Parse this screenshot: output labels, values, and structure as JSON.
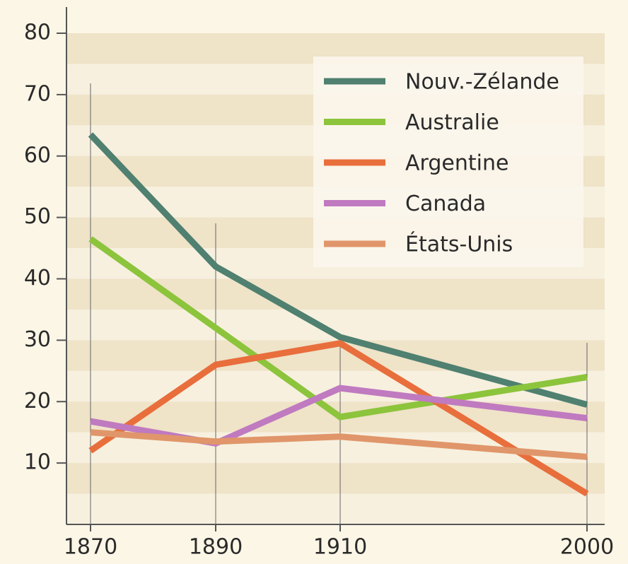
{
  "chart_data": {
    "type": "line",
    "categories": [
      "1870",
      "1890",
      "1910",
      "2000"
    ],
    "series": [
      {
        "name": "Nouv.-Zélande",
        "color": "#4f8070",
        "values": [
          63.5,
          42,
          30.5,
          19.5
        ]
      },
      {
        "name": "Australie",
        "color": "#8cc43c",
        "values": [
          46.5,
          32,
          17.5,
          24
        ]
      },
      {
        "name": "Argentine",
        "color": "#e86e3c",
        "values": [
          12,
          26,
          29.5,
          5
        ]
      },
      {
        "name": "Canada",
        "color": "#c07ac0",
        "values": [
          16.8,
          13.2,
          22.2,
          17.3
        ]
      },
      {
        "name": "États-Unis",
        "color": "#e0966a",
        "values": [
          15,
          13.5,
          14.3,
          11
        ]
      }
    ],
    "ylim": [
      0,
      80
    ],
    "yticks": [
      10,
      20,
      30,
      40,
      50,
      60,
      70,
      80
    ],
    "grid": true
  }
}
